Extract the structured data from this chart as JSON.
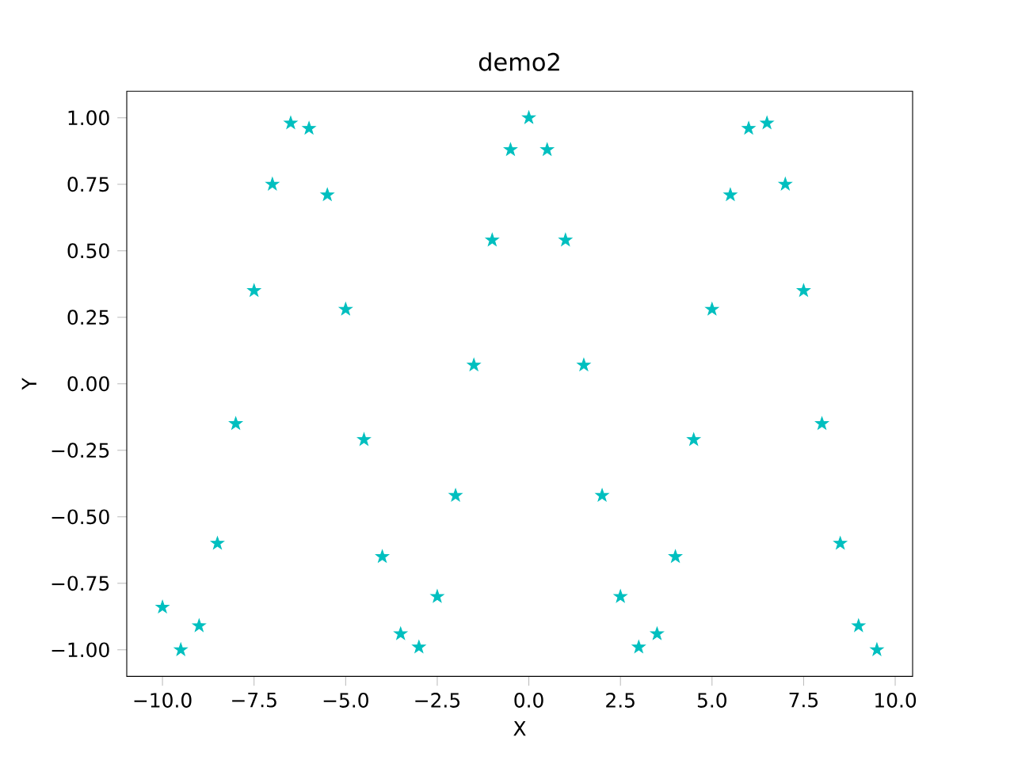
{
  "chart_data": {
    "type": "scatter",
    "title": "demo2",
    "xlabel": "X",
    "ylabel": "Y",
    "x": [
      -10,
      -9.5,
      -9,
      -8.5,
      -8,
      -7.5,
      -7,
      -6.5,
      -6,
      -5.5,
      -5,
      -4.5,
      -4,
      -3.5,
      -3,
      -2.5,
      -2,
      -1.5,
      -1,
      -0.5,
      0,
      0.5,
      1,
      1.5,
      2,
      2.5,
      3,
      3.5,
      4,
      4.5,
      5,
      5.5,
      6,
      6.5,
      7,
      7.5,
      8,
      8.5,
      9,
      9.5
    ],
    "values": [
      -0.84,
      -1.0,
      -0.91,
      -0.6,
      -0.15,
      0.35,
      0.75,
      0.98,
      0.96,
      0.71,
      0.28,
      -0.21,
      -0.65,
      -0.94,
      -0.99,
      -0.8,
      -0.42,
      0.07,
      0.54,
      0.88,
      1.0,
      0.88,
      0.54,
      0.07,
      -0.42,
      -0.8,
      -0.99,
      -0.94,
      -0.65,
      -0.21,
      0.28,
      0.71,
      0.96,
      0.98,
      0.75,
      0.35,
      -0.15,
      -0.6,
      -0.91,
      -1.0
    ],
    "color": "#00bfbf",
    "marker": "star",
    "grid": false,
    "xlim": [
      -10.975,
      10.475
    ],
    "ylim": [
      -1.1,
      1.1
    ],
    "xticks": [
      {
        "value": -10,
        "label": "−10.0"
      },
      {
        "value": -7.5,
        "label": "−7.5"
      },
      {
        "value": -5,
        "label": "−5.0"
      },
      {
        "value": -2.5,
        "label": "−2.5"
      },
      {
        "value": 0,
        "label": "0.0"
      },
      {
        "value": 2.5,
        "label": "2.5"
      },
      {
        "value": 5,
        "label": "5.0"
      },
      {
        "value": 7.5,
        "label": "7.5"
      },
      {
        "value": 10,
        "label": "10.0"
      }
    ],
    "yticks": [
      {
        "value": -1,
        "label": "−1.00"
      },
      {
        "value": -0.75,
        "label": "−0.75"
      },
      {
        "value": -0.5,
        "label": "−0.50"
      },
      {
        "value": -0.25,
        "label": "−0.25"
      },
      {
        "value": 0,
        "label": "0.00"
      },
      {
        "value": 0.25,
        "label": "0.25"
      },
      {
        "value": 0.5,
        "label": "0.50"
      },
      {
        "value": 0.75,
        "label": "0.75"
      },
      {
        "value": 1,
        "label": "1.00"
      }
    ]
  }
}
